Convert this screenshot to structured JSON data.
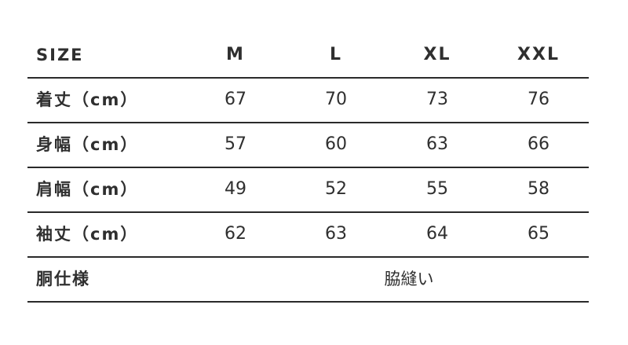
{
  "header": {
    "label": "SIZE",
    "sizes": [
      "M",
      "L",
      "XL",
      "XXL"
    ]
  },
  "rows": [
    {
      "label": "着丈（cm）",
      "values": [
        "67",
        "70",
        "73",
        "76"
      ]
    },
    {
      "label": "身幅（cm）",
      "values": [
        "57",
        "60",
        "63",
        "66"
      ]
    },
    {
      "label": "肩幅（cm）",
      "values": [
        "49",
        "52",
        "55",
        "58"
      ]
    },
    {
      "label": "袖丈（cm）",
      "values": [
        "62",
        "63",
        "64",
        "65"
      ]
    }
  ],
  "footer": {
    "label": "胴仕様",
    "value": "脇縫い"
  }
}
